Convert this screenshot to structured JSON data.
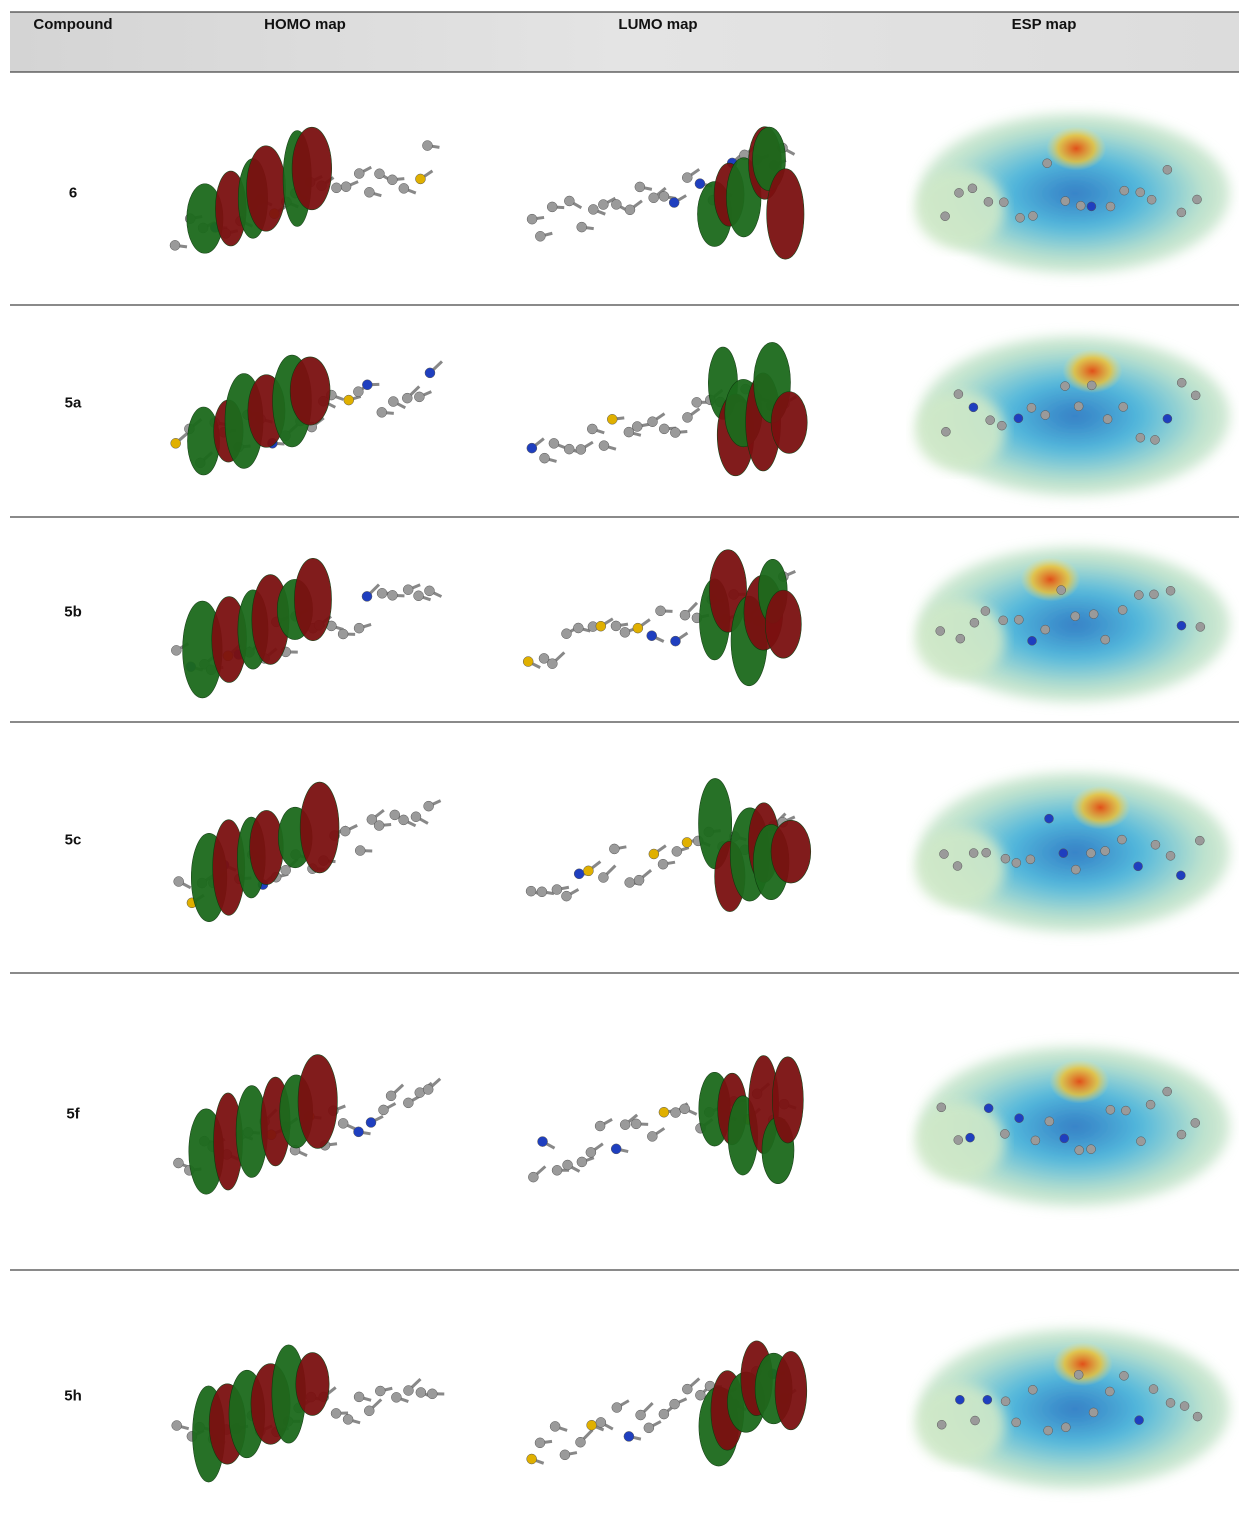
{
  "table": {
    "header": [
      "Compound",
      "HOMO map",
      "LUMO map",
      "ESP map"
    ],
    "rows": [
      [
        "6"
      ],
      [
        "5a"
      ],
      [
        "5b"
      ],
      [
        "5c"
      ],
      [
        "5f"
      ],
      [
        "5h"
      ]
    ]
  }
}
